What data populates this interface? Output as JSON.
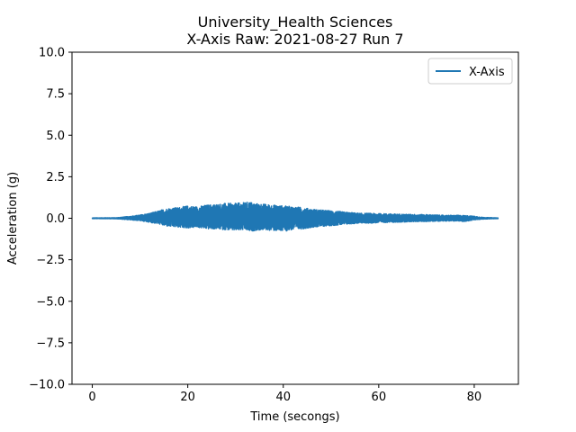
{
  "chart_data": {
    "type": "line",
    "title": "University_Health Sciences",
    "subtitle": "X-Axis Raw: 2021-08-27 Run 7",
    "xlabel": "Time (secongs)",
    "ylabel": "Acceleration (g)",
    "xlim": [
      -4.25,
      89.25
    ],
    "ylim": [
      -10.0,
      10.0
    ],
    "x_ticks": [
      0,
      20,
      40,
      60,
      80
    ],
    "x_tick_labels": [
      "0",
      "20",
      "40",
      "60",
      "80"
    ],
    "y_ticks": [
      -10.0,
      -7.5,
      -5.0,
      -2.5,
      0.0,
      2.5,
      5.0,
      7.5,
      10.0
    ],
    "y_tick_labels": [
      "−10.0",
      "−7.5",
      "−5.0",
      "−2.5",
      "0.0",
      "2.5",
      "5.0",
      "7.5",
      "10.0"
    ],
    "grid": false,
    "legend_position": "top-right",
    "series": [
      {
        "name": "X-Axis",
        "color": "#1f77b4",
        "x": [
          0,
          5,
          8,
          10,
          12,
          14,
          15,
          16,
          18,
          20,
          22,
          24,
          26,
          28,
          30,
          32,
          33,
          34,
          36,
          38,
          40,
          42,
          44,
          46,
          48,
          50,
          52,
          54,
          56,
          58,
          60,
          62,
          64,
          66,
          68,
          70,
          72,
          74,
          76,
          78,
          79,
          80,
          82,
          85
        ],
        "upper": [
          0.02,
          0.03,
          0.12,
          0.2,
          0.3,
          0.45,
          0.55,
          0.6,
          0.65,
          0.75,
          0.7,
          0.8,
          0.85,
          0.9,
          0.9,
          0.95,
          1.0,
          0.9,
          0.85,
          0.8,
          0.75,
          0.7,
          0.65,
          0.55,
          0.5,
          0.45,
          0.4,
          0.35,
          0.3,
          0.3,
          0.28,
          0.27,
          0.25,
          0.24,
          0.23,
          0.22,
          0.2,
          0.18,
          0.18,
          0.17,
          0.15,
          0.12,
          0.05,
          0.02
        ],
        "lower": [
          -0.02,
          -0.03,
          -0.1,
          -0.15,
          -0.25,
          -0.35,
          -0.45,
          -0.5,
          -0.55,
          -0.6,
          -0.55,
          -0.65,
          -0.65,
          -0.7,
          -0.75,
          -0.7,
          -0.8,
          -0.75,
          -0.7,
          -0.75,
          -0.8,
          -0.7,
          -0.65,
          -0.55,
          -0.5,
          -0.45,
          -0.4,
          -0.35,
          -0.3,
          -0.3,
          -0.27,
          -0.25,
          -0.25,
          -0.22,
          -0.2,
          -0.2,
          -0.18,
          -0.17,
          -0.17,
          -0.2,
          -0.15,
          -0.1,
          -0.05,
          -0.02
        ]
      }
    ]
  }
}
